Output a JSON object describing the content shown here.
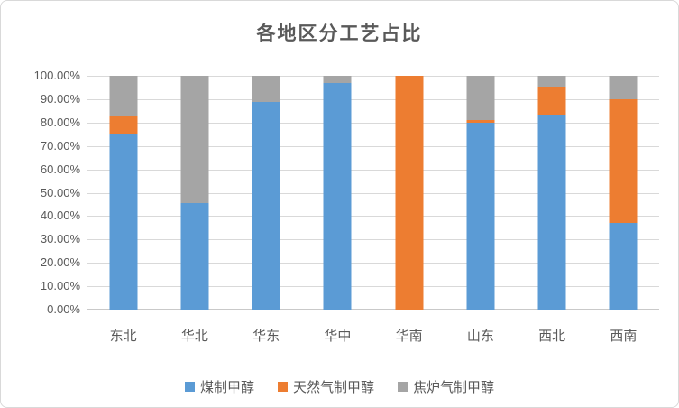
{
  "title": "各地区分工艺占比",
  "colors": {
    "series_blue": "#5B9BD5",
    "series_orange": "#ED7D31",
    "series_gray": "#A5A5A5",
    "gridline": "#D9D9D9",
    "text": "#595959"
  },
  "chart_data": {
    "type": "bar",
    "stacked": true,
    "percent_stacked": true,
    "title": "各地区分工艺占比",
    "categories": [
      "东北",
      "华北",
      "华东",
      "华中",
      "华南",
      "山东",
      "西北",
      "西南"
    ],
    "series": [
      {
        "name": "煤制甲醇",
        "color": "#5B9BD5",
        "values": [
          75.0,
          45.5,
          89.0,
          97.0,
          0.0,
          80.0,
          83.5,
          37.0
        ]
      },
      {
        "name": "天然气制甲醇",
        "color": "#ED7D31",
        "values": [
          7.5,
          0.0,
          0.0,
          0.0,
          100.0,
          1.0,
          12.0,
          53.0
        ]
      },
      {
        "name": "焦炉气制甲醇",
        "color": "#A5A5A5",
        "values": [
          17.5,
          54.5,
          11.0,
          3.0,
          0.0,
          19.0,
          4.5,
          10.0
        ]
      }
    ],
    "xlabel": "",
    "ylabel": "",
    "ylim": [
      0,
      100
    ],
    "ytick_step": 10,
    "yticks": [
      "0.00%",
      "10.00%",
      "20.00%",
      "30.00%",
      "40.00%",
      "50.00%",
      "60.00%",
      "70.00%",
      "80.00%",
      "90.00%",
      "100.00%"
    ],
    "grid": true,
    "legend_position": "bottom"
  }
}
